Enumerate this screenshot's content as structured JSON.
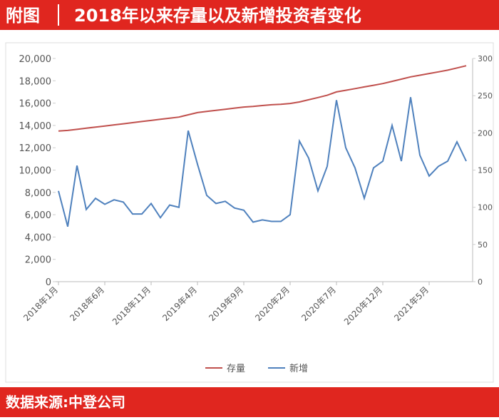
{
  "header": {
    "tag": "附图",
    "title": "2018年以来存量以及新增投资者变化"
  },
  "footer": {
    "source": "数据来源:中登公司"
  },
  "chart_data": {
    "type": "line",
    "categories": [
      "2018年1月",
      null,
      null,
      null,
      null,
      "2018年6月",
      null,
      null,
      null,
      null,
      "2018年11月",
      null,
      null,
      null,
      null,
      "2019年4月",
      null,
      null,
      null,
      null,
      "2019年9月",
      null,
      null,
      null,
      null,
      "2020年2月",
      null,
      null,
      null,
      null,
      "2020年7月",
      null,
      null,
      null,
      null,
      "2020年12月",
      null,
      null,
      null,
      null,
      "2021年5月",
      null,
      null,
      null,
      null
    ],
    "series": [
      {
        "name": "存量",
        "color": "#c0504d",
        "axis": "y",
        "values": [
          13500,
          13550,
          13650,
          13750,
          13850,
          13950,
          14050,
          14150,
          14250,
          14350,
          14450,
          14550,
          14650,
          14750,
          14950,
          15150,
          15250,
          15350,
          15450,
          15550,
          15650,
          15700,
          15780,
          15850,
          15900,
          15970,
          16100,
          16300,
          16500,
          16700,
          17000,
          17150,
          17300,
          17450,
          17600,
          17750,
          17950,
          18150,
          18350,
          18500,
          18650,
          18800,
          18950,
          19150,
          19350
        ]
      },
      {
        "name": "新增",
        "color": "#4f81bd",
        "axis": "y2",
        "values": [
          122,
          74,
          156,
          97,
          112,
          104,
          110,
          107,
          91,
          91,
          105,
          86,
          103,
          100,
          203,
          158,
          116,
          105,
          108,
          99,
          96,
          80,
          83,
          81,
          81,
          90,
          189,
          166,
          122,
          155,
          244,
          180,
          153,
          112,
          153,
          162,
          210,
          162,
          248,
          170,
          142,
          155,
          162,
          188,
          162
        ]
      }
    ],
    "ylim": [
      0,
      20000
    ],
    "yticks": [
      0,
      {
        "value": 2000,
        "label": "2,000"
      },
      {
        "value": 4000,
        "label": "4,000"
      },
      {
        "value": 6000,
        "label": "6,000"
      },
      {
        "value": 8000,
        "label": "8,000"
      },
      {
        "value": 10000,
        "label": "10,000"
      },
      {
        "value": 12000,
        "label": "12,000"
      },
      {
        "value": 14000,
        "label": "14,000"
      },
      {
        "value": 16000,
        "label": "16,000"
      },
      {
        "value": 18000,
        "label": "18,000"
      },
      {
        "value": 20000,
        "label": "20,000"
      }
    ],
    "y2lim": [
      0,
      300
    ],
    "y2ticks": [
      0,
      50,
      100,
      150,
      200,
      250,
      300
    ],
    "grid": false,
    "legend": "bottom"
  }
}
